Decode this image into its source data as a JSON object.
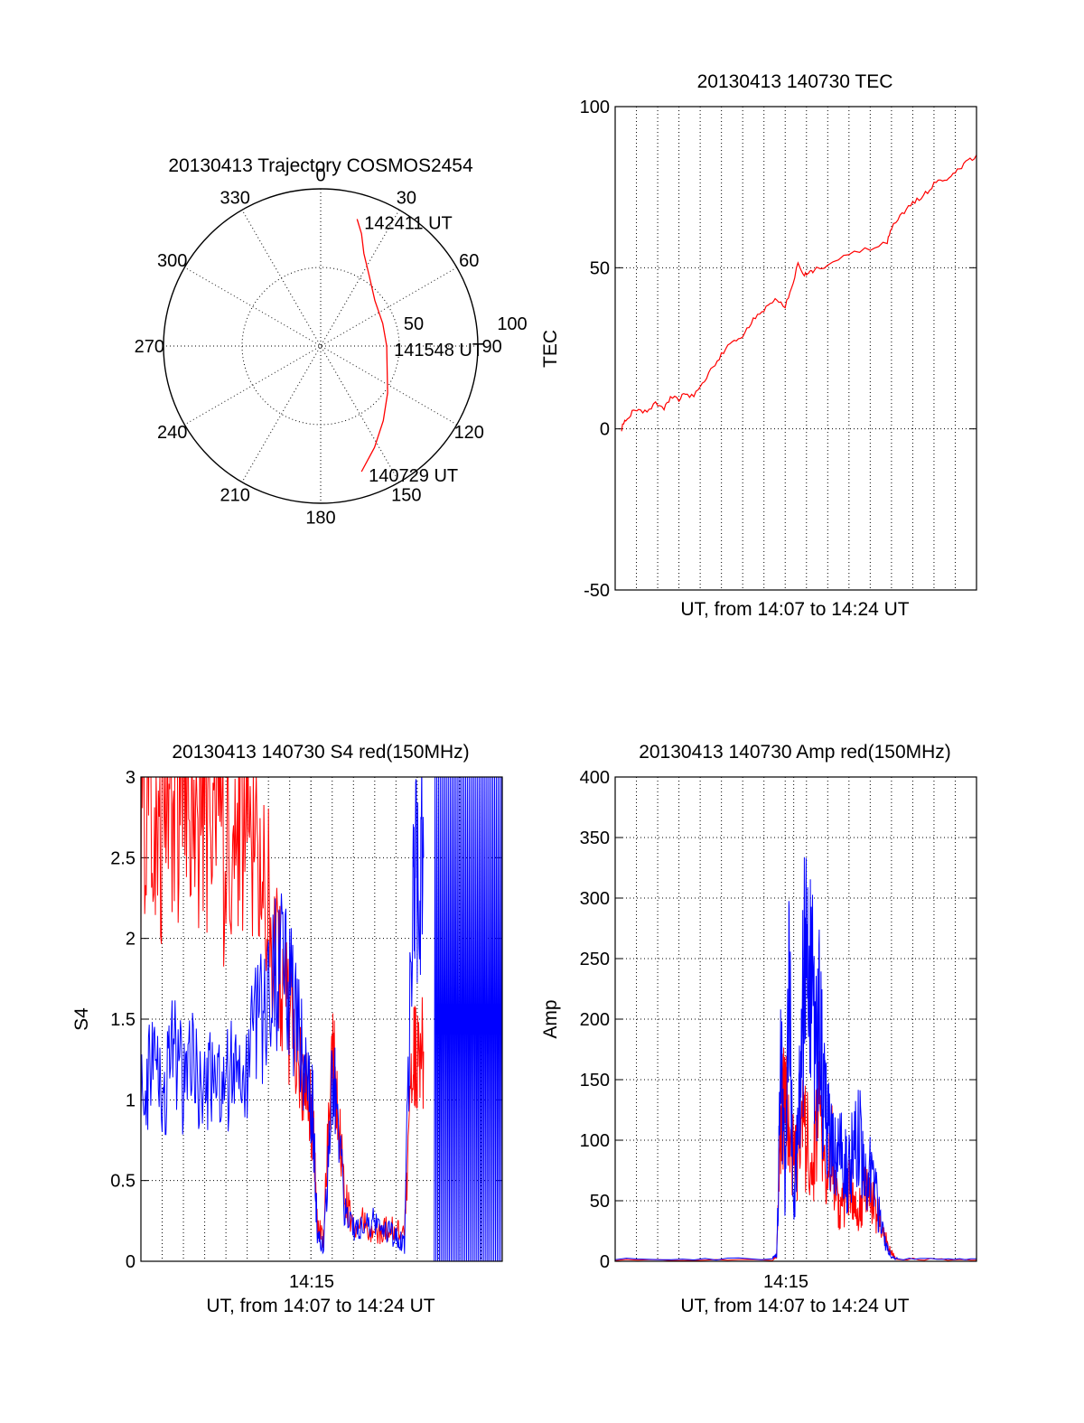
{
  "colors": {
    "red": "#ff0000",
    "blue": "#0000ff",
    "axis": "#000000",
    "grid": "#000000"
  },
  "chart_data": [
    {
      "id": "trajectory",
      "type": "polar",
      "title": "20130413 Trajectory COSMOS2454",
      "angle_labels": [
        "0",
        "30",
        "60",
        "90",
        "120",
        "150",
        "180",
        "210",
        "240",
        "270",
        "300",
        "330"
      ],
      "radial_labels": [
        "50",
        "100"
      ],
      "rlim": [
        0,
        100
      ],
      "grid": true,
      "series": [
        {
          "color": "red",
          "points": [
            [
              16,
              84
            ],
            [
              20,
              76
            ],
            [
              25,
              65
            ],
            [
              35,
              54
            ],
            [
              50,
              45
            ],
            [
              70,
              42
            ],
            [
              90,
              42
            ],
            [
              110,
              45
            ],
            [
              125,
              52
            ],
            [
              140,
              62
            ],
            [
              152,
              73
            ],
            [
              162,
              84
            ]
          ]
        }
      ],
      "annotations": [
        {
          "text": "142411 UT",
          "theta": 16,
          "r": 84
        },
        {
          "text": "141548 UT",
          "theta": 90,
          "r": 42
        },
        {
          "text": "140729 UT",
          "theta": 162,
          "r": 84
        }
      ]
    },
    {
      "id": "tec",
      "type": "line",
      "title": "20130413 140730 TEC",
      "xlabel": "UT, from 14:07 to 14:24 UT",
      "ylabel": "TEC",
      "xlim": [
        0,
        17
      ],
      "ylim": [
        -50,
        100
      ],
      "yticks": [
        "-50",
        "0",
        "50",
        "100"
      ],
      "xtick_labels": [],
      "grid": true,
      "series": [
        {
          "color": "red",
          "x": [
            0.3,
            0.5,
            0.8,
            1.1,
            1.5,
            1.9,
            2.3,
            2.6,
            3.0,
            3.3,
            3.7,
            4.1,
            4.5,
            4.9,
            5.3,
            5.7,
            6.1,
            6.5,
            6.9,
            7.3,
            7.6,
            8.0,
            8.3,
            8.6,
            8.9,
            9.1,
            9.3,
            10.0,
            11.0,
            12.0,
            12.8,
            13.0,
            13.4,
            13.8,
            14.2,
            14.6,
            15.0,
            15.4,
            15.8,
            16.2,
            16.6,
            17.0
          ],
          "y": [
            0,
            3,
            5,
            6,
            5,
            8,
            6,
            10,
            9,
            11,
            10,
            14,
            18,
            22,
            26,
            27,
            30,
            34,
            36,
            39,
            40,
            38,
            44,
            51,
            48,
            48,
            49,
            51,
            54,
            56,
            58,
            62,
            66,
            69,
            71,
            73,
            76,
            77,
            78,
            81,
            83,
            85
          ]
        }
      ]
    },
    {
      "id": "s4",
      "type": "line",
      "title": "20130413 140730 S4 red(150MHz)",
      "xlabel": "UT, from 14:07 to 14:24 UT",
      "ylabel": "S4",
      "xlim": [
        0,
        17
      ],
      "ylim": [
        0,
        3
      ],
      "yticks": [
        "0",
        "0.5",
        "1",
        "1.5",
        "2",
        "2.5",
        "3"
      ],
      "xtick_labels": [
        {
          "x": 8,
          "label": "14:15"
        }
      ],
      "grid": true,
      "series": [
        {
          "name": "red",
          "color": "red",
          "x": [
            0.0,
            0.5,
            1.0,
            1.5,
            2.0,
            2.5,
            3.0,
            3.5,
            4.0,
            4.5,
            5.0,
            5.5,
            6.0,
            6.5,
            7.0,
            7.5,
            7.9,
            8.1,
            8.3,
            8.6,
            9.0,
            9.2,
            9.6,
            10.0,
            10.5,
            11.0,
            11.5,
            12.0,
            12.4,
            12.8,
            13.0,
            13.3
          ],
          "y": [
            2.8,
            2.9,
            2.7,
            2.8,
            2.9,
            2.6,
            2.8,
            2.7,
            2.5,
            2.9,
            2.6,
            2.4,
            2.2,
            1.8,
            1.5,
            1.3,
            1.0,
            0.85,
            0.2,
            0.15,
            1.4,
            1.0,
            0.4,
            0.2,
            0.25,
            0.15,
            0.2,
            0.2,
            0.15,
            1.4,
            1.2,
            1.3
          ]
        },
        {
          "name": "blue",
          "color": "blue",
          "x": [
            0.0,
            0.5,
            1.0,
            1.5,
            2.0,
            2.5,
            3.0,
            3.5,
            4.0,
            4.5,
            5.0,
            5.5,
            6.0,
            6.5,
            7.0,
            7.5,
            7.9,
            8.1,
            8.3,
            8.6,
            9.0,
            9.2,
            9.6,
            10.0,
            10.5,
            11.0,
            11.5,
            12.0,
            12.4,
            12.8,
            13.0,
            13.3
          ],
          "y": [
            1.1,
            1.2,
            1.0,
            1.3,
            1.1,
            1.2,
            1.0,
            1.2,
            1.1,
            1.3,
            1.2,
            1.5,
            1.6,
            1.9,
            1.7,
            1.4,
            1.1,
            0.9,
            0.15,
            0.1,
            1.1,
            1.0,
            0.3,
            0.2,
            0.2,
            0.25,
            0.2,
            0.15,
            0.1,
            2.4,
            2.3,
            2.5
          ]
        }
      ],
      "annotations": [
        {
          "text": "blue dense spikes 0–3",
          "x_from": 13.8,
          "x_to": 17
        }
      ]
    },
    {
      "id": "amp",
      "type": "line",
      "title": "20130413 140730 Amp red(150MHz)",
      "xlabel": "UT, from 14:07 to 14:24 UT",
      "ylabel": "Amp",
      "xlim": [
        0,
        17
      ],
      "ylim": [
        0,
        400
      ],
      "yticks": [
        "0",
        "50",
        "100",
        "150",
        "200",
        "250",
        "300",
        "350",
        "400"
      ],
      "xtick_labels": [
        {
          "x": 8.4,
          "label": "14:15"
        }
      ],
      "grid": true,
      "series": [
        {
          "name": "red",
          "color": "red",
          "x": [
            0.0,
            7.4,
            7.6,
            7.8,
            8.0,
            8.2,
            8.5,
            8.8,
            9.0,
            9.3,
            9.6,
            9.9,
            10.2,
            10.5,
            10.8,
            11.1,
            11.4,
            11.7,
            12.0,
            12.3,
            12.6,
            12.9,
            13.2,
            17.0
          ],
          "y": [
            1,
            1,
            5,
            120,
            140,
            90,
            80,
            110,
            100,
            80,
            130,
            60,
            90,
            40,
            50,
            70,
            35,
            60,
            50,
            40,
            25,
            10,
            2,
            1
          ]
        },
        {
          "name": "blue",
          "color": "blue",
          "x": [
            0.0,
            7.4,
            7.6,
            7.8,
            8.0,
            8.2,
            8.4,
            8.6,
            8.8,
            9.0,
            9.2,
            9.4,
            9.6,
            9.8,
            10.0,
            10.3,
            10.6,
            10.9,
            11.2,
            11.5,
            11.8,
            12.1,
            12.4,
            12.7,
            13.0,
            13.3,
            17.0
          ],
          "y": [
            2,
            2,
            5,
            160,
            60,
            230,
            30,
            120,
            190,
            300,
            250,
            160,
            200,
            140,
            110,
            90,
            100,
            70,
            90,
            110,
            60,
            80,
            40,
            15,
            3,
            2,
            2
          ]
        }
      ]
    }
  ]
}
